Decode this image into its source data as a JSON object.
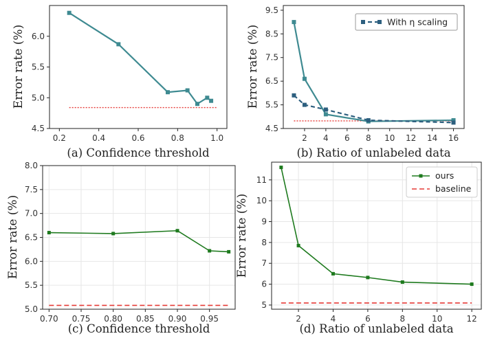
{
  "colors": {
    "teal": "#3e8a91",
    "navy": "#2d5f7f",
    "green": "#1e7a1e",
    "red": "#e53935"
  },
  "chart_data": [
    {
      "type": "line",
      "panel": "a",
      "caption": "(a) Confidence threshold",
      "ylabel": "Error rate (%)",
      "xlim": [
        0.15,
        1.05
      ],
      "ylim": [
        4.5,
        6.5
      ],
      "xticks": [
        0.2,
        0.4,
        0.6,
        0.8,
        1.0
      ],
      "xtick_labels": [
        "0.2",
        "0.4",
        "0.6",
        "0.8",
        "1.0"
      ],
      "yticks": [
        4.5,
        5.0,
        5.5,
        6.0
      ],
      "ytick_labels": [
        "4.5",
        "5.0",
        "5.5",
        "6.0"
      ],
      "grid": false,
      "series": [
        {
          "x": [
            0.25,
            0.5,
            0.75,
            0.85,
            0.9,
            0.95,
            0.97
          ],
          "y": [
            6.38,
            5.87,
            5.09,
            5.12,
            4.9,
            5.0,
            4.95
          ],
          "color": "#3e8a91",
          "style": "solid",
          "marker": "square"
        }
      ],
      "hlines": [
        {
          "y": 4.84,
          "color": "#e53935",
          "style": "dotted",
          "xrange": [
            0.25,
            1.0
          ]
        }
      ]
    },
    {
      "type": "line",
      "panel": "b",
      "caption": "(b) Ratio of unlabeled data",
      "ylabel": "Error rate (%)",
      "xlim": [
        0,
        17
      ],
      "ylim": [
        4.5,
        9.7
      ],
      "xticks": [
        2,
        4,
        6,
        8,
        10,
        12,
        14,
        16
      ],
      "xtick_labels": [
        "2",
        "4",
        "6",
        "8",
        "10",
        "12",
        "14",
        "16"
      ],
      "yticks": [
        4.5,
        5.5,
        6.5,
        7.5,
        8.5,
        9.5
      ],
      "ytick_labels": [
        "4.5",
        "5.5",
        "6.5",
        "7.5",
        "8.5",
        "9.5"
      ],
      "grid": false,
      "legend": {
        "position": "top-right",
        "entries": [
          "With η scaling"
        ]
      },
      "series": [
        {
          "x": [
            1,
            2,
            4,
            8,
            16
          ],
          "y": [
            9.0,
            6.6,
            5.1,
            4.8,
            4.85
          ],
          "color": "#3e8a91",
          "style": "solid",
          "marker": "square"
        },
        {
          "name": "With η scaling",
          "x": [
            1,
            2,
            4,
            8,
            16
          ],
          "y": [
            5.9,
            5.5,
            5.3,
            4.85,
            4.75
          ],
          "color": "#2d5f7f",
          "style": "dashed",
          "marker": "square"
        }
      ],
      "hlines": [
        {
          "y": 4.82,
          "color": "#e53935",
          "style": "dotted",
          "xrange": [
            1,
            16
          ]
        }
      ]
    },
    {
      "type": "line",
      "panel": "c",
      "caption": "(c) Confidence threshold",
      "ylabel": "Error rate (%)",
      "xlim": [
        0.69,
        0.99
      ],
      "ylim": [
        5.0,
        8.0
      ],
      "xticks": [
        0.7,
        0.75,
        0.8,
        0.85,
        0.9,
        0.95
      ],
      "xtick_labels": [
        "0.70",
        "0.75",
        "0.80",
        "0.85",
        "0.90",
        "0.95"
      ],
      "yticks": [
        5.0,
        5.5,
        6.0,
        6.5,
        7.0,
        7.5,
        8.0
      ],
      "ytick_labels": [
        "5.0",
        "5.5",
        "6.0",
        "6.5",
        "7.0",
        "7.5",
        "8.0"
      ],
      "grid": true,
      "series": [
        {
          "x": [
            0.7,
            0.8,
            0.9,
            0.95,
            0.98
          ],
          "y": [
            6.6,
            6.58,
            6.64,
            6.22,
            6.2
          ],
          "color": "#1e7a1e",
          "style": "solid",
          "marker": "square"
        }
      ],
      "hlines": [
        {
          "y": 5.08,
          "color": "#e53935",
          "style": "dashed",
          "xrange": [
            0.7,
            0.98
          ]
        }
      ]
    },
    {
      "type": "line",
      "panel": "d",
      "caption": "(d) Ratio of unlabeled data",
      "ylabel": "Error rate (%)",
      "xlim": [
        0.45,
        12.55
      ],
      "ylim": [
        4.8,
        11.85
      ],
      "xticks": [
        2,
        4,
        6,
        8,
        10,
        12
      ],
      "xtick_labels": [
        "2",
        "4",
        "6",
        "8",
        "10",
        "12"
      ],
      "yticks": [
        5,
        6,
        7,
        8,
        9,
        10,
        11
      ],
      "ytick_labels": [
        "5",
        "6",
        "7",
        "8",
        "9",
        "10",
        "11"
      ],
      "grid": true,
      "legend": {
        "position": "top-right",
        "entries": [
          "ours",
          "baseline"
        ]
      },
      "series": [
        {
          "name": "ours",
          "x": [
            1,
            2,
            4,
            6,
            8,
            12
          ],
          "y": [
            11.6,
            7.85,
            6.5,
            6.32,
            6.1,
            6.0
          ],
          "color": "#1e7a1e",
          "style": "solid",
          "marker": "square"
        }
      ],
      "hlines": [
        {
          "name": "baseline",
          "y": 5.1,
          "color": "#e53935",
          "style": "dashed",
          "xrange": [
            1,
            12
          ]
        }
      ]
    }
  ]
}
